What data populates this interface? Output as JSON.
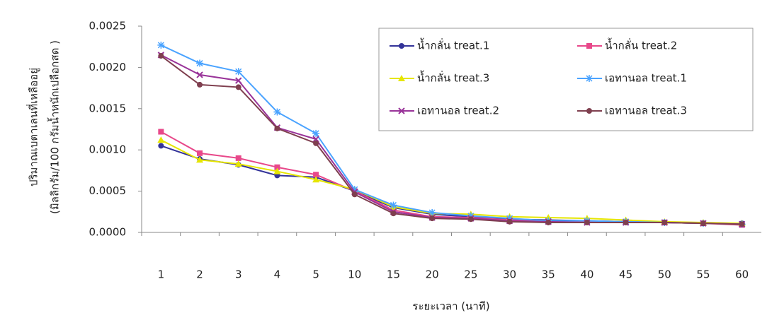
{
  "chart_data": {
    "type": "line",
    "y_label": [
      "ปริมาณเบตาเลนที่เหลืออยู่",
      "(มิลลิกรัม/100 กรัมน้ำหนักเปลือกสด )"
    ],
    "x_label": "ระยะเวลา (นาที)",
    "categories": [
      "1",
      "2",
      "3",
      "4",
      "5",
      "10",
      "15",
      "20",
      "25",
      "30",
      "35",
      "40",
      "45",
      "50",
      "55",
      "60"
    ],
    "ylim": [
      0,
      0.0025
    ],
    "yticks": [
      {
        "value": 0,
        "label": "0.0000"
      },
      {
        "value": 0.0005,
        "label": "0.0005"
      },
      {
        "value": 0.001,
        "label": "0.0010"
      },
      {
        "value": 0.0015,
        "label": "0.0015"
      },
      {
        "value": 0.002,
        "label": "0.0020"
      },
      {
        "value": 0.0025,
        "label": "0.0025"
      }
    ],
    "series": [
      {
        "name": "น้ำกลั่น treat.1",
        "color": "#333399",
        "marker": "circle",
        "values": [
          0.00105,
          0.00089,
          0.00082,
          0.00069,
          0.00067,
          0.0005,
          0.0003,
          0.00022,
          0.00019,
          0.00016,
          0.00015,
          0.00014,
          0.00013,
          0.00012,
          0.00011,
          0.00011
        ]
      },
      {
        "name": "น้ำกลั่น treat.2",
        "color": "#e8488a",
        "marker": "square",
        "values": [
          0.00122,
          0.00096,
          0.0009,
          0.00079,
          0.0007,
          0.0005,
          0.00027,
          0.00019,
          0.00018,
          0.00015,
          0.00014,
          0.00013,
          0.00013,
          0.00012,
          0.00011,
          9e-05
        ]
      },
      {
        "name": "น้ำกลั่น treat.3",
        "color": "#e6e600",
        "marker": "triangle",
        "values": [
          0.00112,
          0.00088,
          0.00083,
          0.00074,
          0.00064,
          0.00052,
          0.00031,
          0.00023,
          0.00022,
          0.00019,
          0.00018,
          0.00017,
          0.00015,
          0.00013,
          0.00012,
          0.00011
        ]
      },
      {
        "name": "เอทานอล treat.1",
        "color": "#4aa3ff",
        "marker": "star",
        "values": [
          0.00227,
          0.00205,
          0.00195,
          0.00146,
          0.0012,
          0.00052,
          0.00033,
          0.00024,
          0.0002,
          0.00017,
          0.00014,
          0.00014,
          0.00013,
          0.00012,
          0.00011,
          0.0001
        ]
      },
      {
        "name": "เอทานอล treat.2",
        "color": "#993399",
        "marker": "cross",
        "values": [
          0.00215,
          0.00191,
          0.00184,
          0.00127,
          0.00113,
          0.00049,
          0.00025,
          0.00018,
          0.00017,
          0.00014,
          0.00013,
          0.00012,
          0.00012,
          0.00012,
          0.00011,
          0.0001
        ]
      },
      {
        "name": "เอทานอล treat.3",
        "color": "#7f3f4f",
        "marker": "circle",
        "values": [
          0.00214,
          0.00179,
          0.00176,
          0.00126,
          0.00108,
          0.00046,
          0.00023,
          0.00017,
          0.00016,
          0.00013,
          0.00012,
          0.00012,
          0.00012,
          0.00012,
          0.00011,
          0.0001
        ]
      }
    ]
  }
}
